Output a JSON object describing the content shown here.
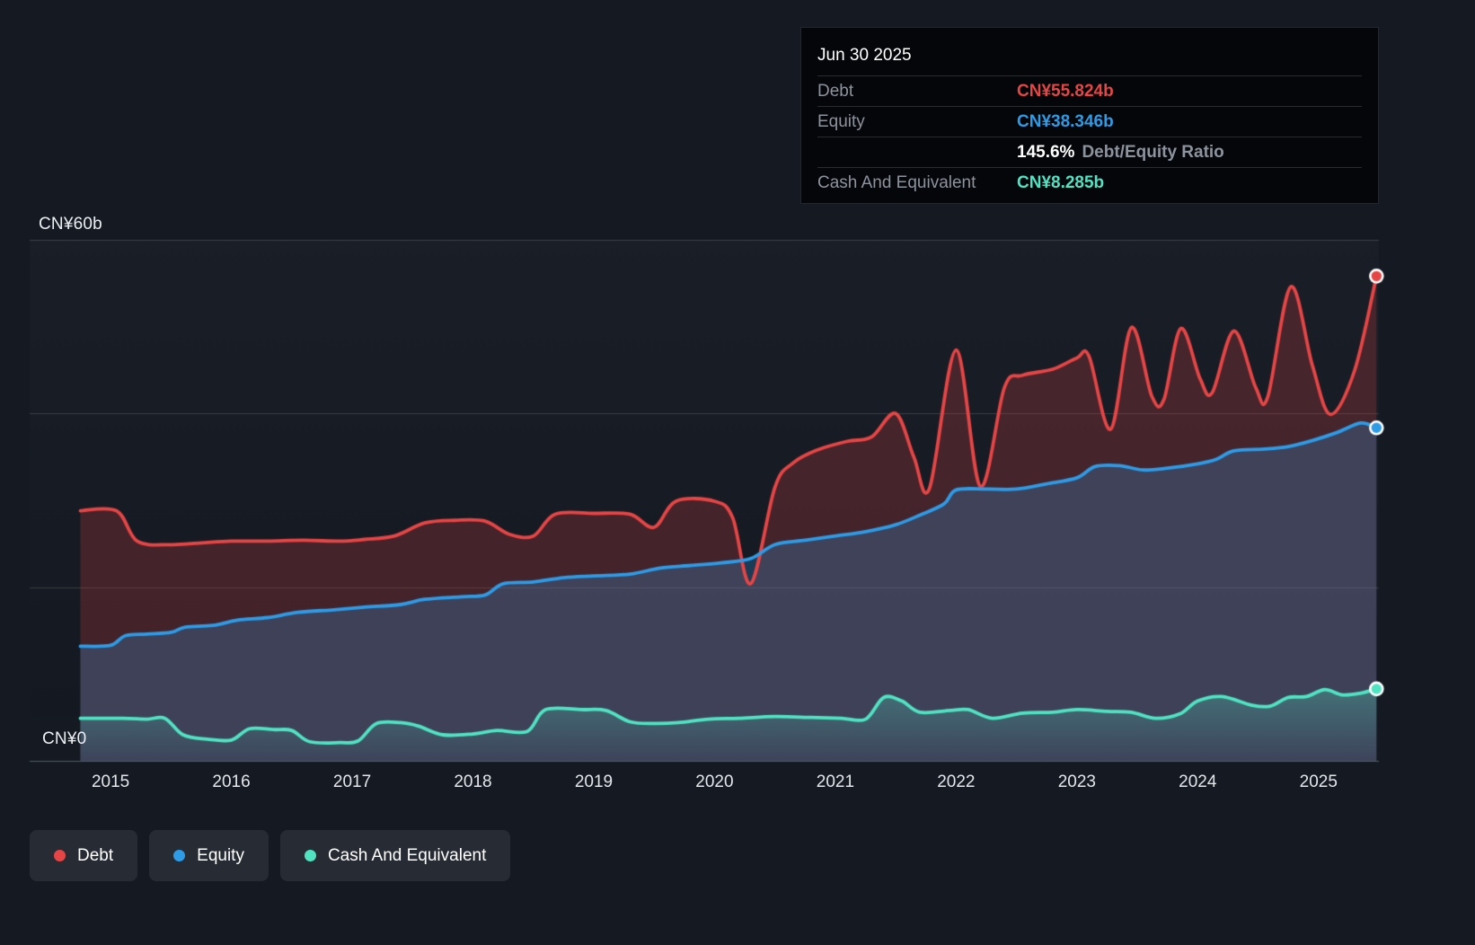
{
  "tooltip": {
    "date": "Jun 30 2025",
    "rows": [
      {
        "label": "Debt",
        "value": "CN¥55.824b",
        "color": "#e64545"
      },
      {
        "label": "Equity",
        "value": "CN¥38.346b",
        "color": "#2e9be6"
      },
      {
        "label": "Cash And Equivalent",
        "value": "CN¥8.285b",
        "color": "#50e3c2"
      }
    ],
    "ratio_value": "145.6%",
    "ratio_label": "Debt/Equity Ratio"
  },
  "y_axis": {
    "top_label": "CN¥60b",
    "bottom_label": "CN¥0"
  },
  "x_axis": {
    "years": [
      "2015",
      "2016",
      "2017",
      "2018",
      "2019",
      "2020",
      "2021",
      "2022",
      "2023",
      "2024",
      "2025"
    ]
  },
  "legend": [
    {
      "label": "Debt",
      "color": "#e64545"
    },
    {
      "label": "Equity",
      "color": "#2e9be6"
    },
    {
      "label": "Cash And Equivalent",
      "color": "#50e3c2"
    }
  ],
  "chart_data": {
    "type": "area",
    "unit": "CN¥ billions",
    "xlim": [
      2014.33,
      2025.5
    ],
    "ylim": [
      0,
      60
    ],
    "gridlines": [
      0,
      20,
      40,
      60
    ],
    "y_tick_labels": [
      "CN¥0",
      "CN¥60b"
    ],
    "legend_position": "bottom-left",
    "series": [
      {
        "name": "Debt",
        "color": "#e64545",
        "fill": "rgba(230,69,69,0.22)",
        "points": [
          [
            2014.75,
            28.8
          ],
          [
            2015.05,
            28.8
          ],
          [
            2015.22,
            25.3
          ],
          [
            2015.5,
            24.9
          ],
          [
            2015.75,
            25.1
          ],
          [
            2016.0,
            25.3
          ],
          [
            2016.3,
            25.3
          ],
          [
            2016.6,
            25.4
          ],
          [
            2016.9,
            25.3
          ],
          [
            2017.1,
            25.5
          ],
          [
            2017.35,
            25.9
          ],
          [
            2017.6,
            27.4
          ],
          [
            2017.85,
            27.7
          ],
          [
            2018.1,
            27.6
          ],
          [
            2018.3,
            26.1
          ],
          [
            2018.5,
            25.9
          ],
          [
            2018.68,
            28.4
          ],
          [
            2019.0,
            28.5
          ],
          [
            2019.3,
            28.4
          ],
          [
            2019.5,
            26.9
          ],
          [
            2019.68,
            29.9
          ],
          [
            2020.0,
            29.9
          ],
          [
            2020.15,
            28.0
          ],
          [
            2020.3,
            20.4
          ],
          [
            2020.5,
            31.5
          ],
          [
            2020.65,
            34.3
          ],
          [
            2020.85,
            35.8
          ],
          [
            2021.1,
            36.8
          ],
          [
            2021.3,
            37.3
          ],
          [
            2021.5,
            40.0
          ],
          [
            2021.65,
            35.0
          ],
          [
            2021.78,
            31.4
          ],
          [
            2022.0,
            47.3
          ],
          [
            2022.2,
            31.6
          ],
          [
            2022.4,
            43.0
          ],
          [
            2022.55,
            44.4
          ],
          [
            2022.8,
            45.1
          ],
          [
            2023.0,
            46.4
          ],
          [
            2023.1,
            46.6
          ],
          [
            2023.28,
            38.2
          ],
          [
            2023.45,
            49.9
          ],
          [
            2023.62,
            42.0
          ],
          [
            2023.72,
            41.6
          ],
          [
            2023.86,
            49.8
          ],
          [
            2024.02,
            44.0
          ],
          [
            2024.12,
            42.4
          ],
          [
            2024.3,
            49.5
          ],
          [
            2024.48,
            43.0
          ],
          [
            2024.58,
            41.9
          ],
          [
            2024.77,
            54.6
          ],
          [
            2024.95,
            45.5
          ],
          [
            2025.1,
            39.9
          ],
          [
            2025.3,
            45.0
          ],
          [
            2025.48,
            55.824
          ]
        ]
      },
      {
        "name": "Equity",
        "color": "#2e9be6",
        "fill": "rgba(46,155,230,0.25)",
        "points": [
          [
            2014.75,
            13.2
          ],
          [
            2015.0,
            13.3
          ],
          [
            2015.12,
            14.4
          ],
          [
            2015.3,
            14.6
          ],
          [
            2015.5,
            14.8
          ],
          [
            2015.62,
            15.4
          ],
          [
            2015.85,
            15.6
          ],
          [
            2016.05,
            16.2
          ],
          [
            2016.3,
            16.5
          ],
          [
            2016.55,
            17.1
          ],
          [
            2016.85,
            17.4
          ],
          [
            2017.1,
            17.7
          ],
          [
            2017.4,
            18.0
          ],
          [
            2017.6,
            18.6
          ],
          [
            2017.9,
            18.9
          ],
          [
            2018.1,
            19.1
          ],
          [
            2018.25,
            20.4
          ],
          [
            2018.5,
            20.6
          ],
          [
            2018.75,
            21.1
          ],
          [
            2019.0,
            21.3
          ],
          [
            2019.3,
            21.5
          ],
          [
            2019.55,
            22.2
          ],
          [
            2019.8,
            22.5
          ],
          [
            2020.05,
            22.8
          ],
          [
            2020.3,
            23.3
          ],
          [
            2020.5,
            24.9
          ],
          [
            2020.75,
            25.4
          ],
          [
            2021.0,
            25.9
          ],
          [
            2021.25,
            26.4
          ],
          [
            2021.5,
            27.2
          ],
          [
            2021.7,
            28.3
          ],
          [
            2021.9,
            29.6
          ],
          [
            2022.0,
            31.2
          ],
          [
            2022.25,
            31.3
          ],
          [
            2022.5,
            31.3
          ],
          [
            2022.75,
            31.9
          ],
          [
            2023.0,
            32.6
          ],
          [
            2023.15,
            33.9
          ],
          [
            2023.35,
            34.0
          ],
          [
            2023.55,
            33.5
          ],
          [
            2023.75,
            33.7
          ],
          [
            2024.0,
            34.2
          ],
          [
            2024.15,
            34.7
          ],
          [
            2024.3,
            35.7
          ],
          [
            2024.55,
            35.9
          ],
          [
            2024.75,
            36.2
          ],
          [
            2024.95,
            36.9
          ],
          [
            2025.15,
            37.8
          ],
          [
            2025.35,
            38.9
          ],
          [
            2025.48,
            38.346
          ]
        ]
      },
      {
        "name": "Cash And Equivalent",
        "color": "#50e3c2",
        "fill_gradient": [
          "rgba(80,227,194,0.30)",
          "rgba(80,227,194,0.02)"
        ],
        "points": [
          [
            2014.75,
            4.9
          ],
          [
            2015.1,
            4.9
          ],
          [
            2015.3,
            4.8
          ],
          [
            2015.45,
            4.9
          ],
          [
            2015.6,
            3.0
          ],
          [
            2015.8,
            2.5
          ],
          [
            2016.0,
            2.4
          ],
          [
            2016.15,
            3.7
          ],
          [
            2016.35,
            3.6
          ],
          [
            2016.5,
            3.5
          ],
          [
            2016.65,
            2.2
          ],
          [
            2016.9,
            2.1
          ],
          [
            2017.05,
            2.3
          ],
          [
            2017.2,
            4.3
          ],
          [
            2017.4,
            4.4
          ],
          [
            2017.55,
            4.0
          ],
          [
            2017.75,
            3.0
          ],
          [
            2018.0,
            3.1
          ],
          [
            2018.2,
            3.5
          ],
          [
            2018.45,
            3.4
          ],
          [
            2018.6,
            5.9
          ],
          [
            2018.9,
            5.9
          ],
          [
            2019.1,
            5.8
          ],
          [
            2019.3,
            4.5
          ],
          [
            2019.5,
            4.3
          ],
          [
            2019.7,
            4.4
          ],
          [
            2019.95,
            4.8
          ],
          [
            2020.2,
            4.9
          ],
          [
            2020.5,
            5.1
          ],
          [
            2020.8,
            5.0
          ],
          [
            2021.05,
            4.9
          ],
          [
            2021.25,
            4.8
          ],
          [
            2021.4,
            7.3
          ],
          [
            2021.55,
            6.9
          ],
          [
            2021.7,
            5.6
          ],
          [
            2021.95,
            5.8
          ],
          [
            2022.1,
            5.9
          ],
          [
            2022.3,
            4.9
          ],
          [
            2022.55,
            5.5
          ],
          [
            2022.8,
            5.6
          ],
          [
            2023.0,
            5.9
          ],
          [
            2023.25,
            5.7
          ],
          [
            2023.45,
            5.6
          ],
          [
            2023.65,
            4.9
          ],
          [
            2023.85,
            5.4
          ],
          [
            2024.0,
            6.9
          ],
          [
            2024.2,
            7.4
          ],
          [
            2024.45,
            6.4
          ],
          [
            2024.6,
            6.3
          ],
          [
            2024.75,
            7.3
          ],
          [
            2024.9,
            7.4
          ],
          [
            2025.05,
            8.2
          ],
          [
            2025.2,
            7.6
          ],
          [
            2025.35,
            7.8
          ],
          [
            2025.48,
            8.285
          ]
        ]
      }
    ]
  }
}
